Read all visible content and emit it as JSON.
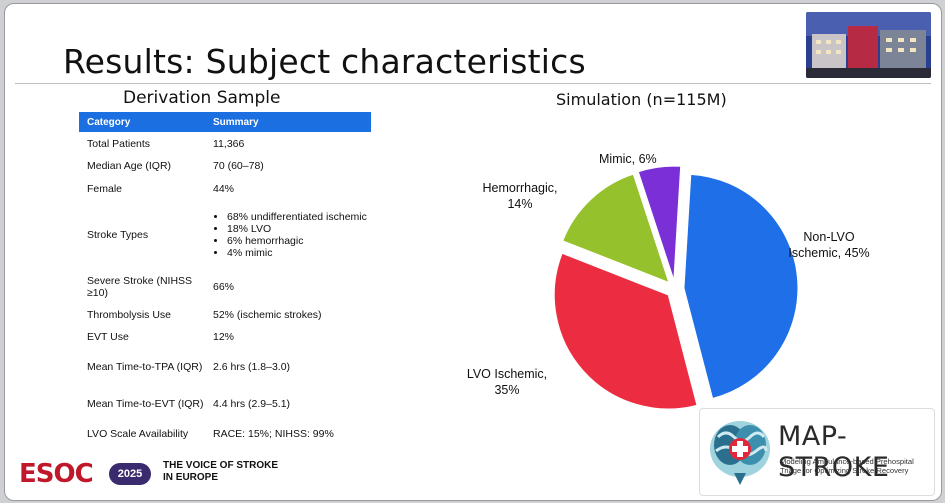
{
  "title": "Results: Subject characteristics",
  "derivation_title": "Derivation Sample",
  "table": {
    "headers": [
      "Category",
      "Summary"
    ],
    "rows": [
      {
        "category": "Total Patients",
        "summary": "11,366"
      },
      {
        "category": "Median Age (IQR)",
        "summary": "70 (60–78)"
      },
      {
        "category": "Female",
        "summary": "44%"
      },
      {
        "category": "Stroke Types",
        "summary": "",
        "bullets": [
          "68% undifferentiated ischemic",
          "18% LVO",
          "6% hemorrhagic",
          "4% mimic"
        ]
      },
      {
        "category": "Severe Stroke (NIHSS ≥10)",
        "summary": "66%"
      },
      {
        "category": "Thrombolysis Use",
        "summary": "52% (ischemic strokes)"
      },
      {
        "category": "EVT Use",
        "summary": "12%"
      },
      {
        "category": "Mean Time-to-TPA (IQR)",
        "summary": "2.6 hrs (1.8–3.0)"
      },
      {
        "category": "Mean Time-to-EVT (IQR)",
        "summary": "4.4 hrs (2.9–5.1)"
      },
      {
        "category": "LVO Scale Availability",
        "summary": "RACE: 15%; NIHSS: 99%"
      }
    ]
  },
  "chart_data": {
    "type": "pie",
    "title": "Simulation (n=115M)",
    "slices": [
      {
        "label": "Non-LVO Ischemic, 45%",
        "value": 45,
        "color": "#1f6fe8"
      },
      {
        "label": "LVO Ischemic, 35%",
        "value": 35,
        "color": "#ec2d41"
      },
      {
        "label": "Hemorrhagic, 14%",
        "value": 14,
        "color": "#95c12d"
      },
      {
        "label": "Mimic, 6%",
        "value": 6,
        "color": "#7b2fd6"
      }
    ],
    "exploded": true,
    "legend": "none"
  },
  "footer": {
    "esoc": "ESOC",
    "year": "2025",
    "line1": "THE VOICE OF STROKE",
    "line2": "IN EUROPE"
  },
  "logo": {
    "name": "MAP-STROKE",
    "tagline": "Modeling Ambulance-based Prehospital Triage for Optimizing Stroke Recovery"
  }
}
